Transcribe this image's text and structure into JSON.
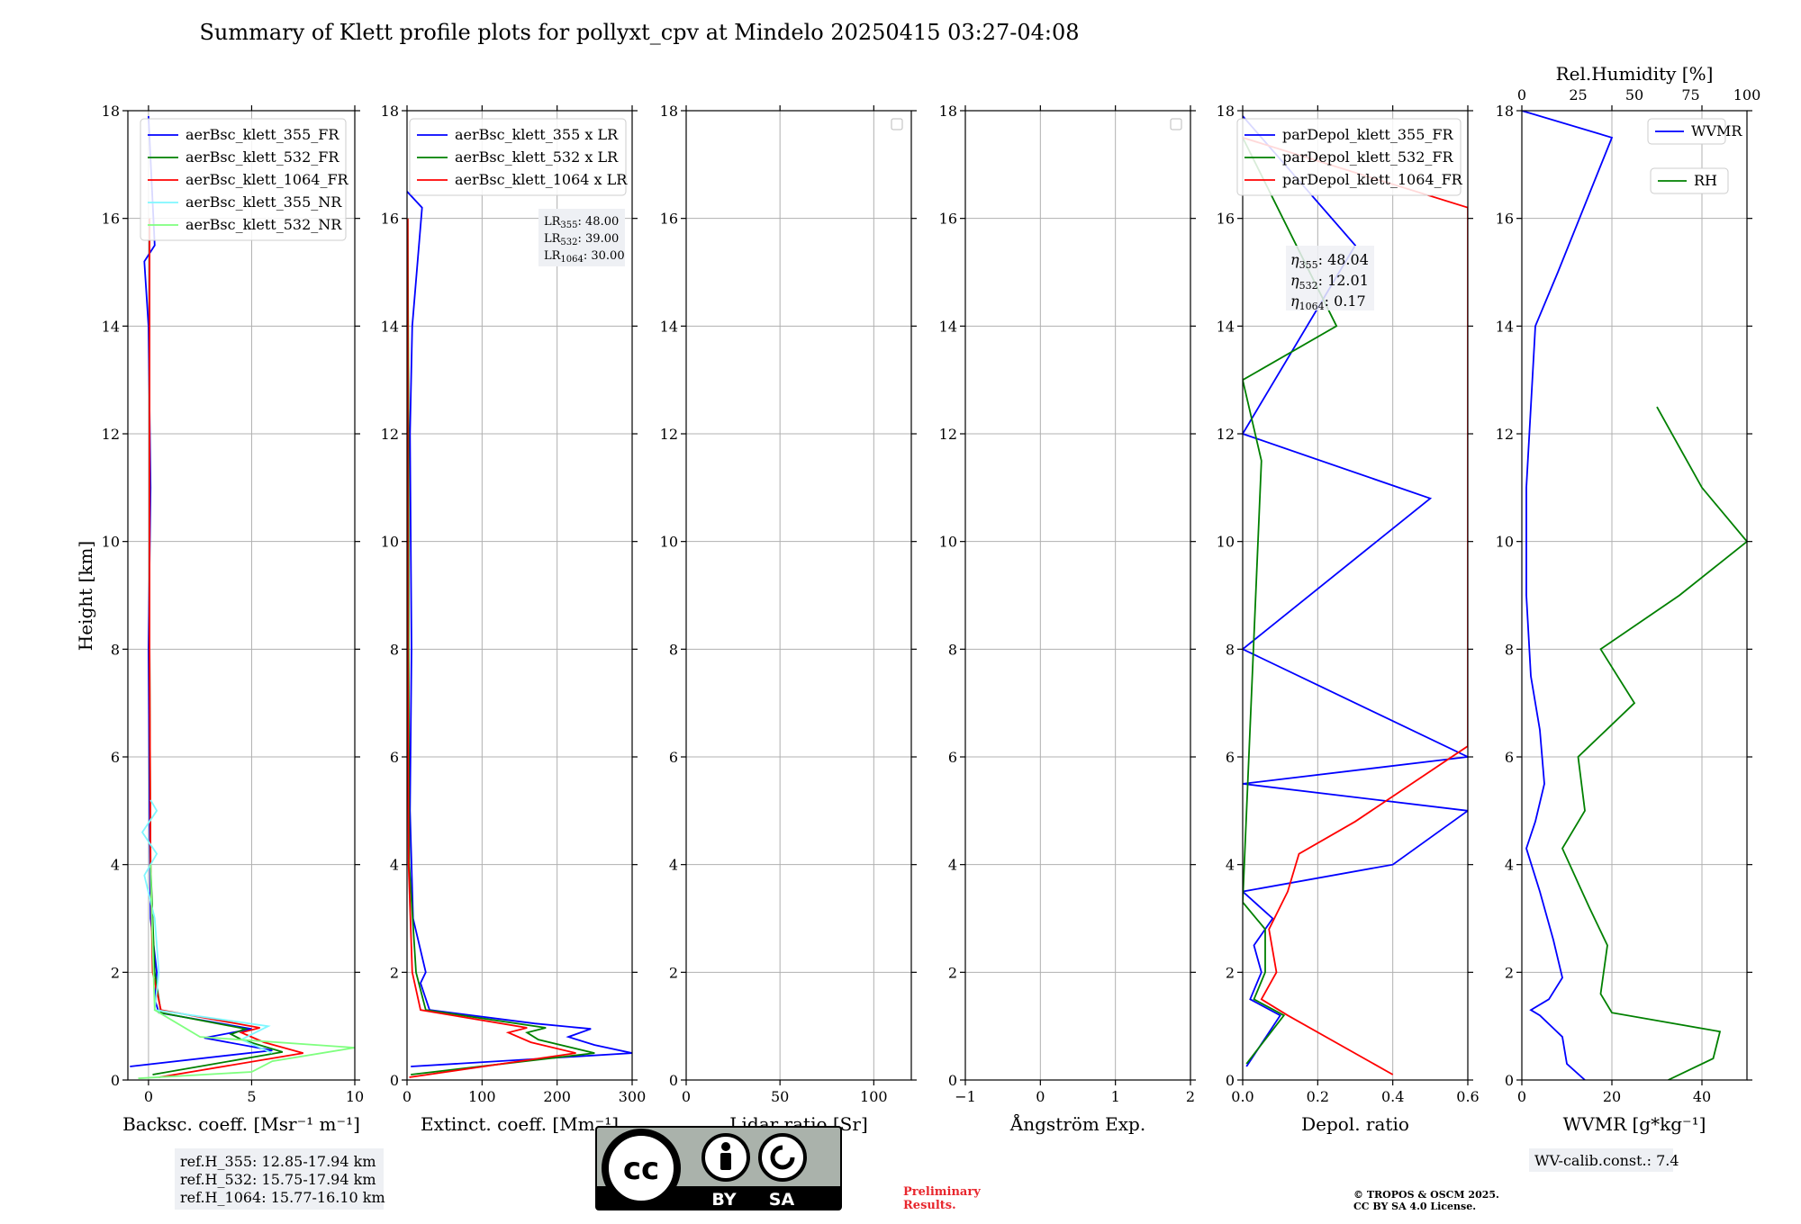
{
  "figure_title": "Summary of Klett profile plots for pollyxt_cpv at Mindelo 20250415 03:27-04:08",
  "y_label": "Height [km]",
  "y_ticks": [
    "0",
    "2",
    "4",
    "6",
    "8",
    "10",
    "12",
    "14",
    "16",
    "18"
  ],
  "chart_data": [
    {
      "type": "line",
      "panel": "backscatter",
      "xlabel": "Backsc. coeff. [Msr⁻¹ m⁻¹]",
      "xlim": [
        -1,
        10
      ],
      "ylim": [
        0,
        18
      ],
      "x_ticks": [
        "0",
        "5",
        "10"
      ],
      "legend_position": "top-right",
      "series": [
        {
          "name": "aerBsc_klett_355_FR",
          "color": "#0000ff",
          "points": [
            [
              -0.9,
              0.25
            ],
            [
              6.0,
              0.55
            ],
            [
              2.7,
              0.78
            ],
            [
              5.0,
              0.95
            ],
            [
              0.5,
              1.25
            ],
            [
              0.3,
              1.5
            ],
            [
              0.4,
              2.0
            ],
            [
              0.1,
              3.0
            ],
            [
              0.05,
              5.0
            ],
            [
              0.0,
              8.0
            ],
            [
              0.1,
              11.0
            ],
            [
              0.0,
              14.0
            ],
            [
              -0.2,
              15.2
            ],
            [
              0.3,
              15.5
            ],
            [
              0.0,
              17.9
            ]
          ]
        },
        {
          "name": "aerBsc_klett_532_FR",
          "color": "#008000",
          "points": [
            [
              0.2,
              0.1
            ],
            [
              6.5,
              0.52
            ],
            [
              4.5,
              0.75
            ],
            [
              4.0,
              0.85
            ],
            [
              4.7,
              0.95
            ],
            [
              0.6,
              1.25
            ],
            [
              0.3,
              2.0
            ],
            [
              0.1,
              4.0
            ],
            [
              0.05,
              8.0
            ],
            [
              0.05,
              12.0
            ],
            [
              0.05,
              16.0
            ]
          ]
        },
        {
          "name": "aerBsc_klett_1064_FR",
          "color": "#ff0000",
          "points": [
            [
              0.5,
              0.05
            ],
            [
              7.5,
              0.5
            ],
            [
              5.6,
              0.7
            ],
            [
              4.5,
              0.88
            ],
            [
              5.4,
              0.97
            ],
            [
              0.6,
              1.3
            ],
            [
              0.2,
              2.0
            ],
            [
              0.1,
              4.0
            ],
            [
              0.05,
              8.0
            ],
            [
              0.05,
              12.0
            ],
            [
              0.05,
              16.0
            ]
          ]
        },
        {
          "name": "aerBsc_klett_355_NR",
          "color": "#7ff7ff",
          "points": [
            [
              6.0,
              0.5
            ],
            [
              4.5,
              0.75
            ],
            [
              5.8,
              1.0
            ],
            [
              0.3,
              1.3
            ],
            [
              0.5,
              2.0
            ],
            [
              0.3,
              3.0
            ],
            [
              -0.2,
              3.8
            ],
            [
              0.4,
              4.2
            ],
            [
              -0.3,
              4.6
            ],
            [
              0.4,
              5.0
            ],
            [
              0.1,
              5.2
            ]
          ]
        },
        {
          "name": "aerBsc_klett_532_NR",
          "color": "#7fff7f",
          "points": [
            [
              -0.5,
              0.03
            ],
            [
              5.0,
              0.15
            ],
            [
              6.0,
              0.35
            ],
            [
              10.0,
              0.6
            ],
            [
              2.5,
              0.8
            ],
            [
              0.3,
              1.3
            ],
            [
              0.2,
              2.5
            ],
            [
              0.1,
              4.0
            ]
          ]
        }
      ]
    },
    {
      "type": "line",
      "panel": "extinction",
      "xlabel": "Extinct. coeff. [Mm⁻¹]",
      "xlim": [
        0,
        300
      ],
      "ylim": [
        0,
        18
      ],
      "x_ticks": [
        "0",
        "100",
        "200",
        "300"
      ],
      "legend_position": "top-right",
      "series": [
        {
          "name": "aerBsc_klett_355 x LR",
          "color": "#0000ff",
          "points": [
            [
              5,
              0.25
            ],
            [
              300,
              0.5
            ],
            [
              250,
              0.65
            ],
            [
              215,
              0.8
            ],
            [
              245,
              0.95
            ],
            [
              170,
              1.05
            ],
            [
              30,
              1.3
            ],
            [
              18,
              1.8
            ],
            [
              25,
              2.0
            ],
            [
              8,
              3.0
            ],
            [
              4,
              5.0
            ],
            [
              6,
              8.0
            ],
            [
              4,
              12.0
            ],
            [
              7,
              14.0
            ],
            [
              20,
              16.2
            ],
            [
              0,
              16.5
            ]
          ]
        },
        {
          "name": "aerBsc_klett_532 x LR",
          "color": "#008000",
          "points": [
            [
              5,
              0.1
            ],
            [
              250,
              0.5
            ],
            [
              175,
              0.75
            ],
            [
              160,
              0.88
            ],
            [
              185,
              0.97
            ],
            [
              25,
              1.3
            ],
            [
              12,
              2.0
            ],
            [
              3,
              4.0
            ],
            [
              2,
              8.0
            ],
            [
              2,
              12.0
            ],
            [
              1,
              16.0
            ]
          ]
        },
        {
          "name": "aerBsc_klett_1064 x LR",
          "color": "#ff0000",
          "points": [
            [
              3,
              0.05
            ],
            [
              225,
              0.5
            ],
            [
              165,
              0.7
            ],
            [
              135,
              0.88
            ],
            [
              160,
              0.97
            ],
            [
              18,
              1.3
            ],
            [
              7,
              2.0
            ],
            [
              2,
              4.0
            ],
            [
              1,
              8.0
            ],
            [
              1,
              12.0
            ],
            [
              1,
              16.0
            ]
          ]
        }
      ],
      "annotation": [
        "48.00",
        "39.00",
        "30.00"
      ]
    },
    {
      "type": "line",
      "panel": "lidar_ratio",
      "xlabel": "Lidar ratio [Sr]",
      "xlim": [
        0,
        120
      ],
      "ylim": [
        0,
        18
      ],
      "x_ticks": [
        "0",
        "50",
        "100"
      ],
      "legend_position": "top-right",
      "series": []
    },
    {
      "type": "line",
      "panel": "angstrom",
      "xlabel": "Ångström Exp.",
      "xlim": [
        -1,
        2
      ],
      "ylim": [
        0,
        18
      ],
      "x_ticks": [
        "−1",
        "0",
        "1",
        "2"
      ],
      "legend_position": "top-right",
      "series": []
    },
    {
      "type": "line",
      "panel": "depolarization",
      "xlabel": "Depol. ratio",
      "xlim": [
        0,
        0.6
      ],
      "ylim": [
        0,
        18
      ],
      "x_ticks": [
        "0.0",
        "0.2",
        "0.4",
        "0.6"
      ],
      "legend_position": "top-right",
      "series": [
        {
          "name": "parDepol_klett_355_FR",
          "color": "#0000ff",
          "points": [
            [
              0.01,
              0.25
            ],
            [
              0.1,
              1.2
            ],
            [
              0.02,
              1.5
            ],
            [
              0.05,
              2.0
            ],
            [
              0.03,
              2.5
            ],
            [
              0.08,
              3.0
            ],
            [
              0.0,
              3.5
            ],
            [
              0.4,
              4.0
            ],
            [
              0.6,
              5.0
            ],
            [
              0.0,
              5.5
            ],
            [
              0.6,
              6.0
            ],
            [
              0.0,
              8.0
            ],
            [
              0.5,
              10.8
            ],
            [
              0.0,
              12.0
            ],
            [
              0.3,
              15.5
            ],
            [
              0.0,
              17.9
            ]
          ]
        },
        {
          "name": "parDepol_klett_532_FR",
          "color": "#008000",
          "points": [
            [
              0.01,
              0.3
            ],
            [
              0.11,
              1.2
            ],
            [
              0.03,
              1.5
            ],
            [
              0.06,
              2.0
            ],
            [
              0.06,
              2.8
            ],
            [
              0.0,
              3.3
            ],
            [
              0.05,
              11.5
            ],
            [
              0.0,
              13.0
            ],
            [
              0.25,
              14.0
            ],
            [
              0.0,
              17.5
            ]
          ]
        },
        {
          "name": "parDepol_klett_1064_FR",
          "color": "#ff0000",
          "points": [
            [
              0.4,
              0.1
            ],
            [
              0.12,
              1.2
            ],
            [
              0.05,
              1.5
            ],
            [
              0.09,
              2.0
            ],
            [
              0.07,
              2.8
            ],
            [
              0.12,
              3.5
            ],
            [
              0.15,
              4.2
            ],
            [
              0.3,
              4.8
            ],
            [
              0.6,
              6.2
            ],
            [
              0.6,
              9.0
            ],
            [
              0.6,
              12.0
            ],
            [
              0.6,
              14.5
            ],
            [
              0.6,
              16.2
            ],
            [
              0.0,
              17.5
            ]
          ]
        }
      ],
      "annotation": [
        "48.04",
        "12.01",
        "0.17"
      ]
    },
    {
      "type": "line",
      "panel": "wvmr",
      "xlabel": "WVMR [g*kg⁻¹]",
      "xlim": [
        0,
        50
      ],
      "ylim": [
        0,
        18
      ],
      "x_ticks": [
        "0",
        "20",
        "40"
      ],
      "top_axis_label": "Rel.Humidity [%]",
      "top_axis_ticks": [
        "0",
        "25",
        "50",
        "75",
        "100"
      ],
      "top_xlim": [
        0,
        100
      ],
      "legend_position": "top-right",
      "series": [
        {
          "name": "WVMR",
          "color": "#0000ff",
          "points": [
            [
              14,
              0.0
            ],
            [
              10,
              0.3
            ],
            [
              9,
              0.8
            ],
            [
              4,
              1.2
            ],
            [
              2,
              1.3
            ],
            [
              6,
              1.5
            ],
            [
              9,
              1.9
            ],
            [
              7,
              2.6
            ],
            [
              4,
              3.5
            ],
            [
              1,
              4.3
            ],
            [
              3,
              4.8
            ],
            [
              5,
              5.5
            ],
            [
              4,
              6.5
            ],
            [
              2,
              7.5
            ],
            [
              1,
              9.0
            ],
            [
              1,
              11.0
            ],
            [
              3,
              14.0
            ],
            [
              8,
              15.0
            ],
            [
              20,
              17.5
            ],
            [
              0,
              18.0
            ]
          ]
        },
        {
          "name": "RH",
          "color": "#008000",
          "points": [
            [
              65,
              0.0
            ],
            [
              85,
              0.4
            ],
            [
              88,
              0.9
            ],
            [
              40,
              1.25
            ],
            [
              35,
              1.6
            ],
            [
              38,
              2.5
            ],
            [
              30,
              3.2
            ],
            [
              18,
              4.3
            ],
            [
              28,
              5.0
            ],
            [
              25,
              6.0
            ],
            [
              50,
              7.0
            ],
            [
              35,
              8.0
            ],
            [
              70,
              9.0
            ],
            [
              100,
              10.0
            ],
            [
              80,
              11.0
            ],
            [
              60,
              12.5
            ]
          ]
        }
      ]
    }
  ],
  "ref_heights": [
    "ref.H_355: 12.85-17.94 km",
    "ref.H_532: 15.75-17.94 km",
    "ref.H_1064: 15.77-16.10 km"
  ],
  "wv_calib": "WV-calib.const.: 7.4",
  "license_badge": {
    "by": "BY",
    "sa": "SA",
    "cc": "cc"
  },
  "preliminary": [
    "Preliminary",
    "Results."
  ],
  "copyright": [
    "© TROPOS & OSCM 2025.",
    "CC BY SA 4.0 License."
  ],
  "colors": {
    "blue": "#0000ff",
    "green": "#008000",
    "red": "#ff0000",
    "cyan": "#7ff7ff",
    "lightgreen": "#7fff7f",
    "grid": "#b0b0b0",
    "note_bg": "#eef0f4"
  }
}
